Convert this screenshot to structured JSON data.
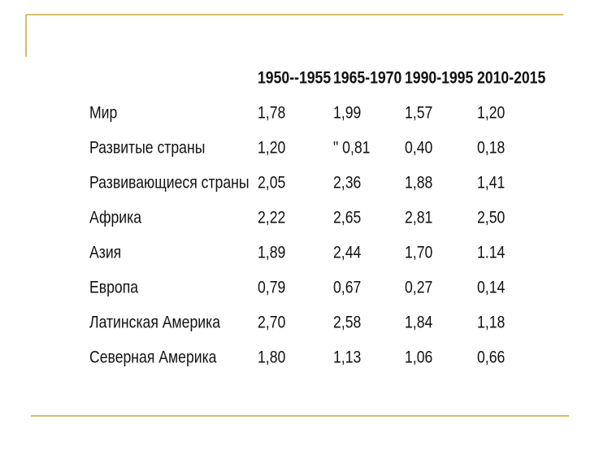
{
  "table": {
    "header": [
      "1950--1955",
      "1965-1970",
      "1990-1995",
      "2010-2015"
    ],
    "rows": [
      [
        "Мир",
        "1,78",
        "1,99",
        "1,57",
        "1,20"
      ],
      [
        "Развитые страны",
        "1,20",
        "\" 0,81",
        "0,40",
        "0,18"
      ],
      [
        "Развивающиеся страны",
        "2,05",
        "2,36",
        "1,88",
        "1,41"
      ],
      [
        "Африка",
        "2,22",
        "2,65",
        "2,81",
        "2,50"
      ],
      [
        "Азия",
        "1,89",
        "2,44",
        "1,70",
        "1.14"
      ],
      [
        "Европа",
        "0,79",
        "0,67",
        "0,27",
        "0,14"
      ],
      [
        "Латинская Америка",
        "2,70",
        "2,58",
        "1,84",
        "1,18"
      ],
      [
        "Северная Америка",
        "1,80",
        "1,13",
        "1,06",
        "0,66"
      ]
    ]
  }
}
